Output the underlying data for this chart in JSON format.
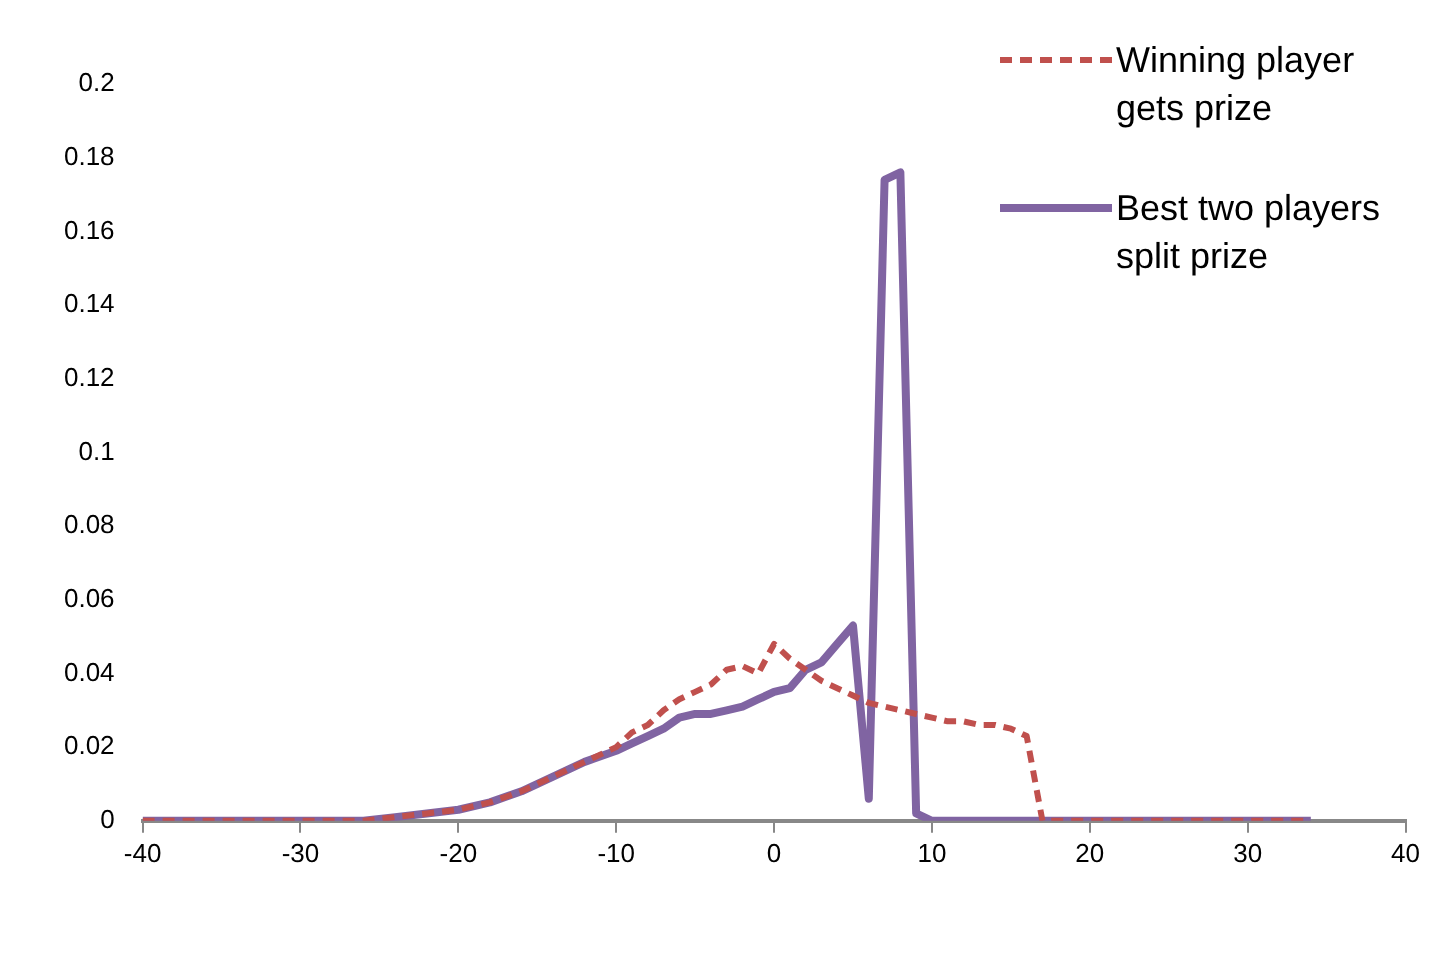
{
  "chart_data": {
    "type": "line",
    "legend": "top right",
    "grid": false,
    "marker": "none",
    "xlim": [
      -40,
      40
    ],
    "xticks": [
      -40,
      -30,
      -20,
      -10,
      0,
      10,
      20,
      30,
      40
    ],
    "ylim": [
      0,
      0.2
    ],
    "yticks": [
      0,
      0.02,
      0.04,
      0.06,
      0.08,
      0.1,
      0.12,
      0.14,
      0.16,
      0.18,
      0.2
    ],
    "series": [
      {
        "name": "Winning player gets prize",
        "color": "#c0504d",
        "line_style": "dashed",
        "x": [
          -40,
          -35,
          -30,
          -26,
          -24,
          -22,
          -20,
          -18,
          -16,
          -14,
          -12,
          -10,
          -9,
          -8,
          -7,
          -6,
          -5,
          -4,
          -3,
          -2,
          -1,
          0,
          1,
          2,
          3,
          4,
          5,
          6,
          7,
          8,
          9,
          10,
          11,
          12,
          13,
          14,
          15,
          16,
          17,
          20,
          25,
          30,
          34
        ],
        "values": [
          0,
          0,
          0,
          0,
          0.001,
          0.002,
          0.003,
          0.005,
          0.008,
          0.012,
          0.016,
          0.02,
          0.024,
          0.026,
          0.03,
          0.033,
          0.035,
          0.037,
          0.041,
          0.042,
          0.04,
          0.048,
          0.044,
          0.041,
          0.038,
          0.036,
          0.034,
          0.032,
          0.031,
          0.03,
          0.029,
          0.028,
          0.027,
          0.027,
          0.026,
          0.026,
          0.025,
          0.023,
          0,
          0,
          0,
          0,
          0
        ]
      },
      {
        "name": "Best two players split prize",
        "color": "#8064a2",
        "line_style": "solid",
        "x": [
          -40,
          -35,
          -30,
          -26,
          -24,
          -22,
          -20,
          -18,
          -16,
          -14,
          -12,
          -10,
          -9,
          -8,
          -7,
          -6,
          -5,
          -4,
          -3,
          -2,
          -1,
          0,
          1,
          2,
          3,
          4,
          5,
          6,
          7,
          8,
          9,
          10,
          15,
          20,
          25,
          30,
          34
        ],
        "values": [
          0,
          0,
          0,
          0,
          0.001,
          0.002,
          0.003,
          0.005,
          0.008,
          0.012,
          0.016,
          0.019,
          0.021,
          0.023,
          0.025,
          0.028,
          0.029,
          0.029,
          0.03,
          0.031,
          0.033,
          0.035,
          0.036,
          0.041,
          0.043,
          0.048,
          0.053,
          0.006,
          0.174,
          0.176,
          0.002,
          0,
          0,
          0,
          0,
          0,
          0
        ]
      }
    ]
  }
}
